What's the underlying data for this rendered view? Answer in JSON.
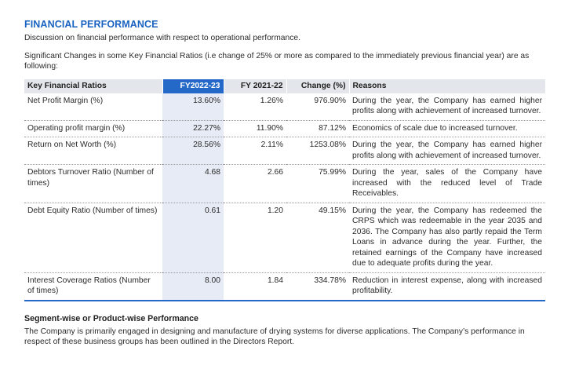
{
  "section": {
    "title": "FINANCIAL PERFORMANCE",
    "intro": "Discussion on financial performance with respect to operational performance.",
    "changes_note": "Significant Changes in some Key Financial Ratios (i.e change of 25% or more as compared to the immediately previous financial year) are as following:"
  },
  "table": {
    "headers": {
      "ratio": "Key Financial Ratios",
      "fy_current": "FY2022-23",
      "fy_previous": "FY 2021-22",
      "change": "Change (%)",
      "reasons": "Reasons"
    },
    "rows": [
      {
        "ratio": "Net Profit Margin (%)",
        "fy_current": "13.60%",
        "fy_previous": "1.26%",
        "change": "976.90%",
        "reason": "During the year, the Company has earned higher profits along with achievement of increased turnover."
      },
      {
        "ratio": "Operating profit margin (%)",
        "fy_current": "22.27%",
        "fy_previous": "11.90%",
        "change": "87.12%",
        "reason": "Economics of scale due to increased turnover."
      },
      {
        "ratio": "Return on Net Worth (%)",
        "fy_current": "28.56%",
        "fy_previous": "2.11%",
        "change": "1253.08%",
        "reason": "During the year, the Company has earned higher profits along with achievement of increased turnover."
      },
      {
        "ratio": "Debtors Turnover Ratio (Number of times)",
        "fy_current": "4.68",
        "fy_previous": "2.66",
        "change": "75.99%",
        "reason": "During the year, sales of the Company have increased with the reduced level of Trade Receivables."
      },
      {
        "ratio": "Debt Equity Ratio (Number of times)",
        "fy_current": "0.61",
        "fy_previous": "1.20",
        "change": "49.15%",
        "reason": "During the year, the Company has redeemed the CRPS which was redeemable in the year 2035 and 2036. The Company has also partly repaid the Term Loans in advance during the year. Further, the retained earnings of the Company have increased due to adequate profits during the year."
      },
      {
        "ratio": "Interest Coverage Ratios (Number of times)",
        "fy_current": "8.00",
        "fy_previous": "1.84",
        "change": "334.78%",
        "reason": "Reduction in interest expense, along with increased profitability."
      }
    ]
  },
  "segment": {
    "title": "Segment-wise or Product-wise Performance",
    "body": "The Company is primarily engaged in designing and manufacture of drying systems for diverse applications. The Company’s performance in respect of these business groups has been outlined in the Directors Report."
  }
}
